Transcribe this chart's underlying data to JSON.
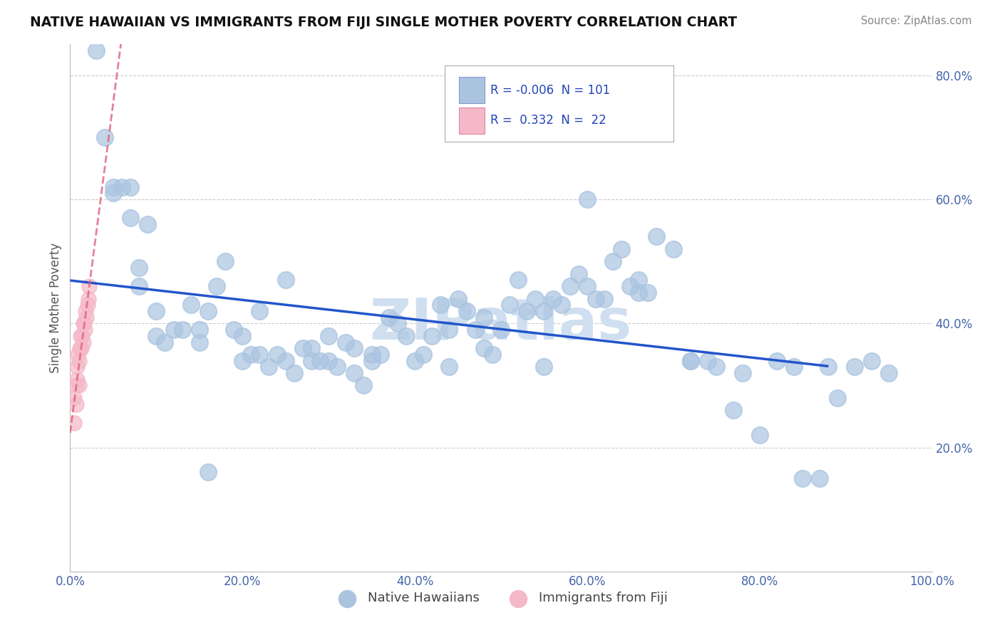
{
  "title": "NATIVE HAWAIIAN VS IMMIGRANTS FROM FIJI SINGLE MOTHER POVERTY CORRELATION CHART",
  "source": "Source: ZipAtlas.com",
  "ylabel": "Single Mother Poverty",
  "xlim": [
    0.0,
    1.0
  ],
  "ylim": [
    0.0,
    0.85
  ],
  "yticks": [
    0.2,
    0.4,
    0.6,
    0.8
  ],
  "ytick_labels": [
    "20.0%",
    "40.0%",
    "60.0%",
    "80.0%"
  ],
  "xticks": [
    0.0,
    0.2,
    0.4,
    0.6,
    0.8,
    1.0
  ],
  "xtick_labels": [
    "0.0%",
    "20.0%",
    "40.0%",
    "60.0%",
    "80.0%",
    "100.0%"
  ],
  "legend_R_blue": "-0.006",
  "legend_N_blue": "101",
  "legend_R_pink": "0.332",
  "legend_N_pink": "22",
  "blue_color": "#aac4e0",
  "pink_color": "#f5b8c8",
  "trend_blue_color": "#2255cc",
  "trend_pink_color": "#e06080",
  "watermark": "ZIPatlas",
  "watermark_color": "#d0dff0",
  "blue_scatter_x": [
    0.03,
    0.04,
    0.05,
    0.05,
    0.06,
    0.07,
    0.07,
    0.08,
    0.08,
    0.09,
    0.1,
    0.1,
    0.11,
    0.12,
    0.13,
    0.14,
    0.15,
    0.15,
    0.16,
    0.17,
    0.18,
    0.19,
    0.2,
    0.2,
    0.21,
    0.22,
    0.22,
    0.23,
    0.24,
    0.25,
    0.26,
    0.27,
    0.28,
    0.28,
    0.29,
    0.3,
    0.31,
    0.32,
    0.33,
    0.33,
    0.34,
    0.35,
    0.36,
    0.37,
    0.38,
    0.39,
    0.4,
    0.41,
    0.42,
    0.43,
    0.44,
    0.45,
    0.46,
    0.47,
    0.48,
    0.49,
    0.5,
    0.51,
    0.52,
    0.53,
    0.54,
    0.55,
    0.56,
    0.57,
    0.58,
    0.59,
    0.6,
    0.61,
    0.62,
    0.63,
    0.64,
    0.65,
    0.66,
    0.67,
    0.68,
    0.7,
    0.72,
    0.74,
    0.75,
    0.77,
    0.78,
    0.8,
    0.82,
    0.84,
    0.85,
    0.87,
    0.89,
    0.91,
    0.93,
    0.95,
    0.35,
    0.44,
    0.25,
    0.16,
    0.6,
    0.72,
    0.55,
    0.3,
    0.48,
    0.66,
    0.88
  ],
  "blue_scatter_y": [
    0.84,
    0.7,
    0.62,
    0.61,
    0.62,
    0.62,
    0.57,
    0.46,
    0.49,
    0.56,
    0.42,
    0.38,
    0.37,
    0.39,
    0.39,
    0.43,
    0.37,
    0.39,
    0.42,
    0.46,
    0.5,
    0.39,
    0.38,
    0.34,
    0.35,
    0.42,
    0.35,
    0.33,
    0.35,
    0.34,
    0.32,
    0.36,
    0.36,
    0.34,
    0.34,
    0.34,
    0.33,
    0.37,
    0.32,
    0.36,
    0.3,
    0.34,
    0.35,
    0.41,
    0.4,
    0.38,
    0.34,
    0.35,
    0.38,
    0.43,
    0.39,
    0.44,
    0.42,
    0.39,
    0.36,
    0.35,
    0.39,
    0.43,
    0.47,
    0.42,
    0.44,
    0.42,
    0.44,
    0.43,
    0.46,
    0.48,
    0.46,
    0.44,
    0.44,
    0.5,
    0.52,
    0.46,
    0.47,
    0.45,
    0.54,
    0.52,
    0.34,
    0.34,
    0.33,
    0.26,
    0.32,
    0.22,
    0.34,
    0.33,
    0.15,
    0.15,
    0.28,
    0.33,
    0.34,
    0.32,
    0.35,
    0.33,
    0.47,
    0.16,
    0.6,
    0.34,
    0.33,
    0.38,
    0.41,
    0.45,
    0.33
  ],
  "pink_scatter_x": [
    0.005,
    0.005,
    0.007,
    0.007,
    0.008,
    0.008,
    0.009,
    0.01,
    0.01,
    0.011,
    0.012,
    0.013,
    0.014,
    0.015,
    0.015,
    0.016,
    0.017,
    0.018,
    0.019,
    0.02,
    0.021,
    0.022
  ],
  "pink_scatter_y": [
    0.28,
    0.24,
    0.3,
    0.27,
    0.33,
    0.31,
    0.35,
    0.34,
    0.3,
    0.36,
    0.38,
    0.36,
    0.38,
    0.4,
    0.37,
    0.4,
    0.39,
    0.42,
    0.41,
    0.43,
    0.44,
    0.46
  ],
  "pink_trend_x0": 0.0,
  "pink_trend_x1": 0.3,
  "blue_trend_y": 0.348
}
